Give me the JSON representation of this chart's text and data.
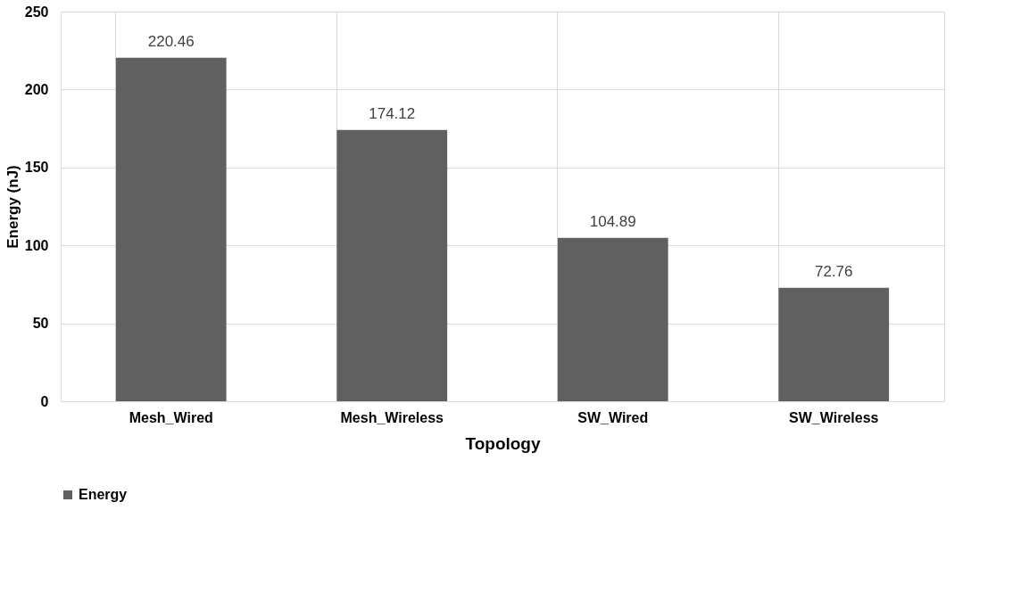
{
  "chart_data": {
    "type": "bar",
    "xlabel": "Topology",
    "ylabel": "Energy (nJ)",
    "categories": [
      "Mesh_Wired",
      "Mesh_Wireless",
      "SW_Wired",
      "SW_Wireless"
    ],
    "series": [
      {
        "name": "Energy",
        "color": "#606060",
        "values": [
          220.46,
          174.12,
          104.89,
          72.76
        ]
      }
    ],
    "ylim": [
      0,
      250
    ],
    "yticks": [
      0,
      50,
      100,
      150,
      200,
      250
    ],
    "grid": true,
    "legend": "bottom",
    "data_labels": true
  }
}
